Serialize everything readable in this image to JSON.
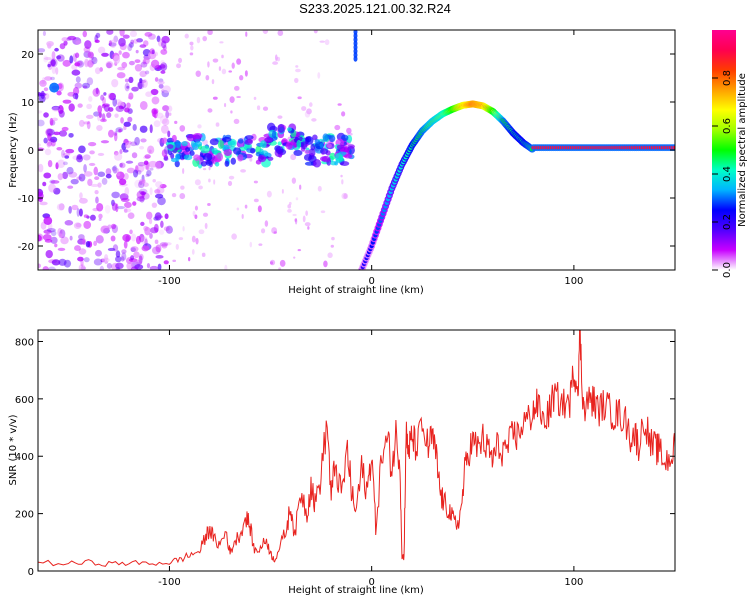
{
  "title": "S233.2025.121.00.32.R24",
  "colors": {
    "background": "#ffffff",
    "frame": "#000000",
    "snr_line": "#e8231f",
    "spectro_low": "#9b59ff",
    "colorbar_stops": [
      "#ffffff",
      "#c800ff",
      "#5000ff",
      "#0000ff",
      "#00b4ff",
      "#00ffc8",
      "#00ff00",
      "#a0ff00",
      "#ffff00",
      "#ffa000",
      "#ff3c00",
      "#ff0050",
      "#ff0090"
    ]
  },
  "chart_data": [
    {
      "type": "heatmap",
      "title": "",
      "xlabel": "Height of straight line (km)",
      "ylabel": "Frequency (Hz)",
      "xlim": [
        -165,
        150
      ],
      "ylim": [
        -25,
        25
      ],
      "x_ticks": [
        -100,
        0,
        100
      ],
      "x_tick_labels": [
        "-100",
        "0",
        "100"
      ],
      "y_ticks": [
        -20,
        -10,
        0,
        10,
        20
      ],
      "y_tick_labels": [
        "-20",
        "-10",
        "0",
        "10",
        "20"
      ],
      "grid": false,
      "colorbar": {
        "label": "Normalized spectral amplitude",
        "range": [
          0,
          1
        ],
        "ticks": [
          0,
          0.2,
          0.4,
          0.6,
          0.8
        ],
        "tick_labels": [
          "0.0",
          "0.2",
          "0.4",
          "0.6",
          "0.8"
        ]
      },
      "features": {
        "left_noise_region": {
          "x_range": [
            -165,
            -100
          ],
          "y_range": [
            -25,
            25
          ],
          "amplitude": 0.15
        },
        "scattered_band": {
          "x_range": [
            -100,
            -10
          ],
          "y_center": 0,
          "y_spread": 3,
          "amplitude": 0.4
        },
        "arc_track": {
          "x": [
            -5,
            0,
            5,
            10,
            15,
            20,
            25,
            30,
            35,
            40,
            45,
            50,
            55,
            60,
            65,
            70,
            75,
            80
          ],
          "y": [
            -25,
            -20,
            -14,
            -8,
            -3,
            1,
            4,
            6,
            7.5,
            8.5,
            9.3,
            9.6,
            9.2,
            8,
            6,
            3.5,
            1.5,
            0
          ],
          "amplitude": [
            0.2,
            0.25,
            0.3,
            0.35,
            0.4,
            0.45,
            0.5,
            0.55,
            0.6,
            0.7,
            0.85,
            0.95,
            0.9,
            0.7,
            0.5,
            0.45,
            0.45,
            0.5
          ]
        },
        "flat_track": {
          "x_range": [
            80,
            150
          ],
          "y": 0.5,
          "amplitude": 0.9
        }
      }
    },
    {
      "type": "line",
      "title": "",
      "xlabel": "Height of straight line (km)",
      "ylabel": "SNR (10 * v/v)",
      "xlim": [
        -165,
        150
      ],
      "ylim": [
        0,
        840
      ],
      "x_ticks": [
        -100,
        0,
        100
      ],
      "x_tick_labels": [
        "-100",
        "0",
        "100"
      ],
      "y_ticks": [
        0,
        200,
        400,
        600,
        800
      ],
      "y_tick_labels": [
        "0",
        "200",
        "400",
        "600",
        "800"
      ],
      "grid": false,
      "series": [
        {
          "color": "#e8231f",
          "x": [
            -165,
            -150,
            -140,
            -130,
            -120,
            -110,
            -100,
            -95,
            -90,
            -85,
            -82,
            -80,
            -78,
            -75,
            -72,
            -70,
            -68,
            -65,
            -62,
            -60,
            -58,
            -55,
            -52,
            -50,
            -48,
            -45,
            -42,
            -40,
            -38,
            -35,
            -32,
            -30,
            -28,
            -25,
            -22,
            -20,
            -18,
            -15,
            -12,
            -10,
            -8,
            -5,
            -2,
            0,
            2,
            5,
            8,
            10,
            12,
            14,
            15,
            16,
            17,
            18,
            19,
            20,
            22,
            25,
            28,
            30,
            32,
            34,
            36,
            38,
            40,
            42,
            44,
            46,
            48,
            50,
            52,
            55,
            58,
            60,
            62,
            65,
            68,
            70,
            72,
            75,
            78,
            80,
            82,
            85,
            88,
            90,
            92,
            95,
            98,
            100,
            102,
            103,
            104,
            105,
            108,
            110,
            112,
            115,
            118,
            120,
            122,
            125,
            128,
            130,
            132,
            135,
            138,
            140,
            142,
            145,
            148,
            150
          ],
          "y": [
            30,
            25,
            30,
            25,
            28,
            26,
            30,
            40,
            55,
            70,
            120,
            150,
            110,
            90,
            140,
            60,
            100,
            130,
            190,
            150,
            70,
            80,
            110,
            60,
            40,
            90,
            150,
            230,
            120,
            280,
            200,
            310,
            230,
            340,
            520,
            250,
            380,
            260,
            420,
            280,
            200,
            350,
            280,
            420,
            150,
            400,
            460,
            350,
            480,
            380,
            50,
            50,
            480,
            420,
            440,
            470,
            430,
            500,
            430,
            470,
            390,
            270,
            230,
            220,
            180,
            160,
            200,
            340,
            420,
            450,
            430,
            460,
            410,
            390,
            430,
            420,
            440,
            480,
            470,
            520,
            530,
            560,
            580,
            520,
            560,
            610,
            600,
            580,
            590,
            700,
            640,
            845,
            650,
            560,
            600,
            590,
            560,
            580,
            560,
            540,
            550,
            530,
            470,
            480,
            440,
            530,
            440,
            430,
            420,
            380,
            400,
            430
          ]
        }
      ]
    }
  ]
}
